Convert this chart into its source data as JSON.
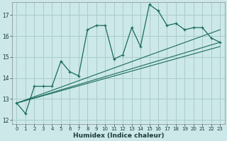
{
  "xlabel": "Humidex (Indice chaleur)",
  "bg_color": "#cce8e8",
  "grid_color": "#aacccc",
  "line_color": "#1a6b5a",
  "xlim": [
    -0.5,
    23.5
  ],
  "ylim": [
    11.8,
    17.6
  ],
  "yticks": [
    12,
    13,
    14,
    15,
    16,
    17
  ],
  "xticks": [
    0,
    1,
    2,
    3,
    4,
    5,
    6,
    7,
    8,
    9,
    10,
    11,
    12,
    13,
    14,
    15,
    16,
    17,
    18,
    19,
    20,
    21,
    22,
    23
  ],
  "series1_x": [
    0,
    1,
    2,
    3,
    4,
    5,
    6,
    7,
    8,
    9,
    10,
    11,
    12,
    13,
    14,
    15,
    16,
    17,
    18,
    19,
    20,
    21,
    22,
    23
  ],
  "series1_y": [
    12.8,
    12.3,
    13.6,
    13.6,
    13.6,
    14.8,
    14.3,
    14.1,
    16.3,
    16.5,
    16.5,
    14.9,
    15.1,
    16.4,
    15.5,
    17.5,
    17.2,
    16.5,
    16.6,
    16.3,
    16.4,
    16.4,
    15.9,
    15.7
  ],
  "line2_x": [
    0,
    23
  ],
  "line2_y": [
    12.8,
    16.3
  ],
  "line3_x": [
    0,
    23
  ],
  "line3_y": [
    12.8,
    15.5
  ],
  "line4_x": [
    0,
    23
  ],
  "line4_y": [
    12.8,
    15.7
  ]
}
